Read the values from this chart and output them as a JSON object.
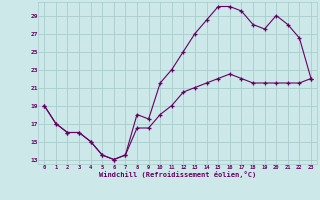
{
  "xlabel": "Windchill (Refroidissement éolien,°C)",
  "bg_color": "#cce8e8",
  "grid_color": "#aacccc",
  "line_color": "#660066",
  "marker": "+",
  "xlim": [
    -0.5,
    23.5
  ],
  "ylim": [
    12.5,
    30.5
  ],
  "yticks": [
    13,
    15,
    17,
    19,
    21,
    23,
    25,
    27,
    29
  ],
  "xticks": [
    0,
    1,
    2,
    3,
    4,
    5,
    6,
    7,
    8,
    9,
    10,
    11,
    12,
    13,
    14,
    15,
    16,
    17,
    18,
    19,
    20,
    21,
    22,
    23
  ],
  "curve1_x": [
    0,
    1,
    2,
    3,
    4,
    5,
    6,
    7,
    8,
    9,
    10,
    11,
    12,
    13,
    14,
    15,
    16,
    17,
    18,
    19,
    20,
    21,
    22,
    23
  ],
  "curve1_y": [
    19,
    17,
    16,
    16,
    15,
    13.5,
    13,
    13.5,
    18,
    17.5,
    21.5,
    23,
    25,
    27,
    28.5,
    30,
    30,
    29.5,
    28,
    27.5,
    29,
    28,
    26.5,
    22
  ],
  "curve2_x": [
    0,
    1,
    2,
    3,
    4,
    5,
    6,
    7,
    8,
    9,
    10,
    11,
    12,
    13,
    14,
    15,
    16,
    17,
    18,
    19,
    20,
    21,
    22,
    23
  ],
  "curve2_y": [
    19,
    17,
    16,
    16,
    15,
    13.5,
    13,
    13.5,
    16.5,
    16.5,
    18,
    19,
    20.5,
    21,
    21.5,
    22,
    22.5,
    22,
    21.5,
    21.5,
    21.5,
    21.5,
    21.5,
    22
  ]
}
